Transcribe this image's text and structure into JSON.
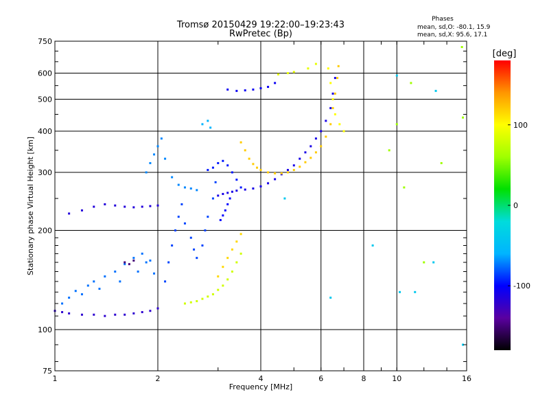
{
  "chart_data": {
    "type": "scatter",
    "title": "Tromsø 20150429 19:22:00–19:23:43",
    "subtitle": "RwPretec (Bp)",
    "xlabel": "Frequency [MHz]",
    "ylabel": "Stationary phase Virtual Height [km]",
    "x_scale": "log",
    "y_scale": "log",
    "xlim": [
      1,
      16
    ],
    "ylim": [
      75,
      750
    ],
    "x_ticks": [
      1,
      2,
      4,
      6,
      8,
      10,
      16
    ],
    "y_ticks": [
      75,
      100,
      200,
      300,
      400,
      500,
      600,
      750
    ],
    "grid": true,
    "phase_legend": {
      "title": "Phases",
      "line1": "mean, sd,O: -80.1, 15.9",
      "line2": "mean, sd,X:  95.6, 17.1"
    },
    "colorbar": {
      "label": "[deg]",
      "min": -180,
      "max": 180,
      "ticks": [
        100,
        0,
        -100
      ],
      "colormap": [
        "#000000",
        "#5a00a0",
        "#0000ff",
        "#00b4ff",
        "#00dcdc",
        "#00e000",
        "#a0ff00",
        "#ffff00",
        "#ff9600",
        "#ff0000"
      ]
    },
    "series": [
      {
        "phase": -120,
        "points": [
          [
            1.0,
            114
          ],
          [
            1.05,
            113
          ],
          [
            1.1,
            112
          ],
          [
            1.2,
            111
          ],
          [
            1.3,
            111
          ],
          [
            1.4,
            110
          ],
          [
            1.5,
            111
          ],
          [
            1.6,
            111
          ],
          [
            1.7,
            112
          ],
          [
            1.8,
            113
          ],
          [
            1.9,
            114
          ],
          [
            2.0,
            116
          ]
        ]
      },
      {
        "phase": -75,
        "points": [
          [
            1.05,
            120
          ],
          [
            1.1,
            125
          ],
          [
            1.15,
            131
          ],
          [
            1.2,
            128
          ],
          [
            1.25,
            136
          ],
          [
            1.3,
            140
          ],
          [
            1.35,
            133
          ],
          [
            1.4,
            145
          ],
          [
            1.5,
            150
          ],
          [
            1.55,
            140
          ],
          [
            1.6,
            158
          ],
          [
            1.7,
            165
          ],
          [
            1.75,
            150
          ],
          [
            1.8,
            170
          ],
          [
            1.85,
            160
          ],
          [
            1.9,
            162
          ],
          [
            1.95,
            148
          ]
        ]
      },
      {
        "phase": -150,
        "points": [
          [
            1.6,
            160
          ],
          [
            1.65,
            158
          ],
          [
            1.7,
            162
          ]
        ]
      },
      {
        "phase": -115,
        "points": [
          [
            1.1,
            225
          ],
          [
            1.2,
            230
          ],
          [
            1.3,
            236
          ],
          [
            1.4,
            240
          ],
          [
            1.5,
            238
          ],
          [
            1.6,
            236
          ],
          [
            1.7,
            235
          ],
          [
            1.8,
            236
          ],
          [
            1.9,
            237
          ],
          [
            2.0,
            238
          ]
        ]
      },
      {
        "phase": -70,
        "points": [
          [
            1.85,
            300
          ],
          [
            1.9,
            320
          ],
          [
            1.95,
            340
          ],
          [
            2.0,
            360
          ],
          [
            2.05,
            380
          ],
          [
            2.1,
            330
          ],
          [
            2.2,
            290
          ],
          [
            2.3,
            275
          ],
          [
            2.4,
            270
          ],
          [
            2.5,
            268
          ],
          [
            2.6,
            265
          ]
        ]
      },
      {
        "phase": -85,
        "points": [
          [
            2.1,
            140
          ],
          [
            2.15,
            160
          ],
          [
            2.2,
            180
          ],
          [
            2.25,
            200
          ],
          [
            2.3,
            220
          ],
          [
            2.35,
            240
          ],
          [
            2.4,
            210
          ],
          [
            2.5,
            190
          ],
          [
            2.55,
            175
          ],
          [
            2.6,
            165
          ],
          [
            2.7,
            180
          ],
          [
            2.75,
            200
          ],
          [
            2.8,
            220
          ],
          [
            2.9,
            250
          ],
          [
            2.95,
            280
          ]
        ]
      },
      {
        "phase": 80,
        "points": [
          [
            2.4,
            120
          ],
          [
            2.5,
            121
          ],
          [
            2.6,
            122
          ],
          [
            2.7,
            124
          ],
          [
            2.8,
            126
          ],
          [
            2.9,
            128
          ],
          [
            3.0,
            132
          ],
          [
            3.1,
            136
          ],
          [
            3.2,
            142
          ],
          [
            3.3,
            150
          ],
          [
            3.4,
            160
          ],
          [
            3.5,
            170
          ]
        ]
      },
      {
        "phase": 115,
        "points": [
          [
            3.0,
            145
          ],
          [
            3.1,
            155
          ],
          [
            3.2,
            165
          ],
          [
            3.3,
            175
          ],
          [
            3.4,
            185
          ],
          [
            3.5,
            195
          ]
        ]
      },
      {
        "phase": -110,
        "points": [
          [
            3.0,
            255
          ],
          [
            3.1,
            258
          ],
          [
            3.2,
            260
          ],
          [
            3.3,
            262
          ],
          [
            3.4,
            264
          ],
          [
            3.6,
            266
          ],
          [
            3.8,
            268
          ],
          [
            4.0,
            272
          ],
          [
            4.2,
            278
          ],
          [
            4.4,
            286
          ],
          [
            4.6,
            296
          ],
          [
            4.8,
            305
          ],
          [
            5.0,
            315
          ],
          [
            5.2,
            330
          ],
          [
            5.4,
            345
          ],
          [
            5.6,
            360
          ],
          [
            5.8,
            380
          ],
          [
            6.0,
            400
          ],
          [
            6.2,
            430
          ],
          [
            6.4,
            470
          ],
          [
            6.5,
            520
          ],
          [
            6.6,
            580
          ]
        ]
      },
      {
        "phase": -95,
        "points": [
          [
            2.8,
            305
          ],
          [
            2.9,
            310
          ],
          [
            3.0,
            320
          ],
          [
            3.1,
            325
          ],
          [
            3.2,
            315
          ],
          [
            3.3,
            300
          ],
          [
            3.4,
            285
          ],
          [
            3.5,
            270
          ]
        ]
      },
      {
        "phase": -100,
        "points": [
          [
            3.05,
            215
          ],
          [
            3.1,
            222
          ],
          [
            3.15,
            230
          ],
          [
            3.2,
            240
          ],
          [
            3.25,
            250
          ]
        ]
      },
      {
        "phase": 120,
        "points": [
          [
            3.5,
            370
          ],
          [
            3.6,
            350
          ],
          [
            3.7,
            330
          ],
          [
            3.8,
            318
          ],
          [
            3.9,
            310
          ],
          [
            4.0,
            305
          ],
          [
            4.2,
            300
          ],
          [
            4.4,
            298
          ],
          [
            4.6,
            298
          ],
          [
            4.8,
            300
          ],
          [
            5.0,
            305
          ],
          [
            5.2,
            312
          ],
          [
            5.4,
            322
          ],
          [
            5.6,
            332
          ],
          [
            5.8,
            345
          ],
          [
            6.0,
            360
          ],
          [
            6.2,
            385
          ],
          [
            6.4,
            420
          ],
          [
            6.5,
            470
          ],
          [
            6.6,
            520
          ],
          [
            6.7,
            580
          ],
          [
            6.75,
            630
          ]
        ]
      },
      {
        "phase": 100,
        "points": [
          [
            6.3,
            620
          ],
          [
            6.4,
            560
          ],
          [
            6.5,
            500
          ],
          [
            6.6,
            450
          ],
          [
            6.8,
            420
          ],
          [
            7.0,
            400
          ]
        ]
      },
      {
        "phase": -105,
        "points": [
          [
            3.2,
            535
          ],
          [
            3.4,
            530
          ],
          [
            3.6,
            532
          ],
          [
            3.8,
            535
          ],
          [
            4.0,
            540
          ],
          [
            4.2,
            545
          ],
          [
            4.4,
            560
          ]
        ]
      },
      {
        "phase": 90,
        "points": [
          [
            4.5,
            595
          ],
          [
            4.8,
            600
          ],
          [
            5.0,
            605
          ],
          [
            5.5,
            620
          ],
          [
            5.8,
            640
          ]
        ]
      },
      {
        "phase": -60,
        "points": [
          [
            2.7,
            420
          ],
          [
            2.8,
            430
          ],
          [
            2.85,
            410
          ]
        ]
      },
      {
        "phase": 60,
        "points": [
          [
            10.5,
            270
          ],
          [
            12.0,
            160
          ],
          [
            15.5,
            720
          ],
          [
            15.6,
            440
          ],
          [
            9.5,
            350
          ],
          [
            10.0,
            420
          ],
          [
            11.0,
            560
          ],
          [
            13.5,
            320
          ]
        ]
      },
      {
        "phase": -40,
        "points": [
          [
            4.7,
            250
          ],
          [
            6.4,
            125
          ],
          [
            8.5,
            180
          ],
          [
            10.2,
            130
          ],
          [
            11.3,
            130
          ],
          [
            12.8,
            160
          ],
          [
            15.6,
            90
          ],
          [
            13.0,
            530
          ],
          [
            10.0,
            590
          ]
        ]
      }
    ]
  }
}
